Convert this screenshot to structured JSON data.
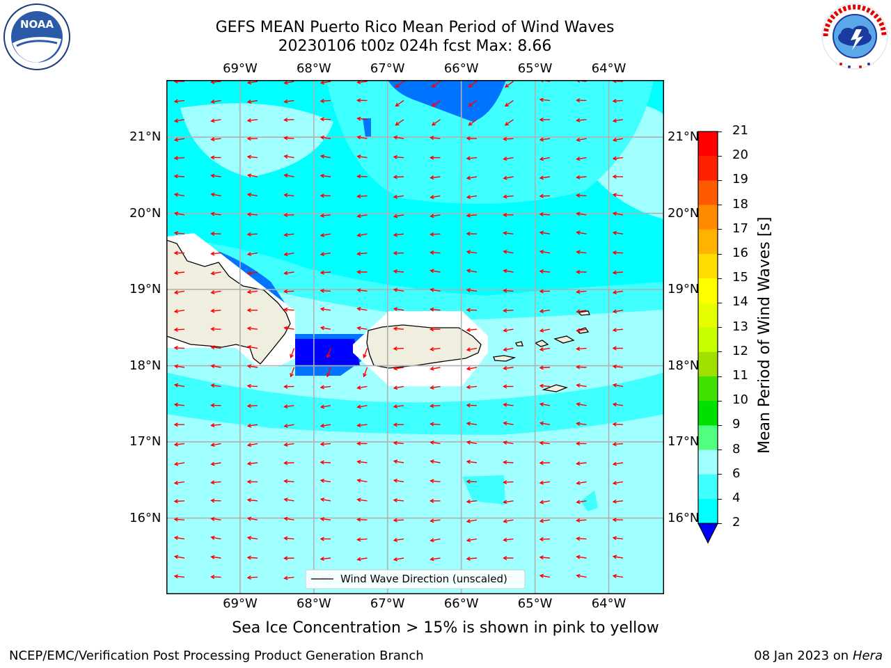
{
  "title_line1": "GEFS MEAN Puerto Rico Mean Period of Wind Waves",
  "title_line2": "20230106 t00z 024h fcst   Max: 8.66",
  "logos": {
    "noaa": "NOAA",
    "nws": "NATIONAL WEATHER SERVICE"
  },
  "map": {
    "lon_ticks": [
      "69°W",
      "68°W",
      "67°W",
      "66°W",
      "65°W",
      "64°W"
    ],
    "lat_ticks": [
      "21°N",
      "20°N",
      "19°N",
      "18°N",
      "17°N",
      "16°N"
    ],
    "lon_range": [
      -70.0,
      -63.25
    ],
    "lat_range": [
      15.0,
      21.75
    ],
    "arrow_color": "#ff0000",
    "legend_label": "Wind Wave Direction (unscaled)"
  },
  "colorbar": {
    "label": "Mean Period of Wind Waves [s]",
    "ticks": [
      "21",
      "20",
      "19",
      "18",
      "17",
      "16",
      "15",
      "14",
      "13",
      "12",
      "11",
      "10",
      "9",
      "8",
      "6",
      "4",
      "2"
    ],
    "colors": [
      "#0000ff",
      "#0073ff",
      "#00ffff",
      "#40ffff",
      "#a0ffff",
      "#50ff80",
      "#00e000",
      "#40e000",
      "#a0e000",
      "#c8ff00",
      "#e6ff00",
      "#ffff00",
      "#ffdd00",
      "#ffb200",
      "#ff8c00",
      "#ff5a00",
      "#ff2000",
      "#ff0000"
    ]
  },
  "footer_note": "Sea Ice Concentration > 15% is shown in pink to yellow",
  "footer_left": "NCEP/EMC/Verification Post Processing Product Generation Branch",
  "footer_right_date": "08 Jan 2023 on",
  "footer_right_host": "Hera"
}
